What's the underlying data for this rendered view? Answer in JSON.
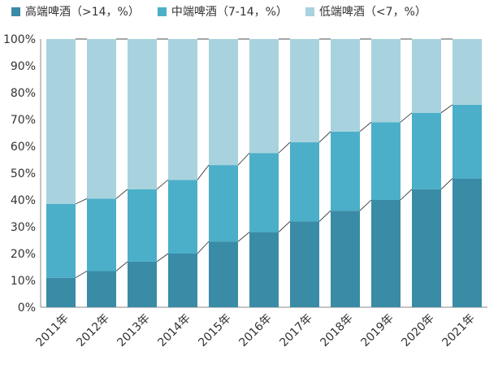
{
  "chart_data": {
    "type": "bar",
    "stacked": true,
    "normalized": true,
    "categories": [
      "2011年",
      "2012年",
      "2013年",
      "2014年",
      "2015年",
      "2016年",
      "2017年",
      "2018年",
      "2019年",
      "2020年",
      "2021年"
    ],
    "series": [
      {
        "name": "高端啤酒（>14，%）",
        "color": "#3a8ba6",
        "values": [
          11,
          13.5,
          17,
          20,
          24.5,
          28,
          32,
          36,
          40,
          44,
          48
        ]
      },
      {
        "name": "中端啤酒（7-14，%）",
        "color": "#4bafc9",
        "values": [
          27.5,
          27,
          27,
          27.5,
          28.5,
          29.5,
          29.5,
          29.5,
          29,
          28.5,
          27.5
        ]
      },
      {
        "name": "低端啤酒（<7，%）",
        "color": "#a8d3de",
        "values": [
          61.5,
          59.5,
          56,
          52.5,
          47,
          42.5,
          38.5,
          34.5,
          31,
          27.5,
          24.5
        ]
      }
    ],
    "ylim": [
      0,
      100
    ],
    "yticks": [
      "0%",
      "10%",
      "20%",
      "30%",
      "40%",
      "50%",
      "60%",
      "70%",
      "80%",
      "90%",
      "100%"
    ],
    "legend_position": "top",
    "series_lines": true
  }
}
